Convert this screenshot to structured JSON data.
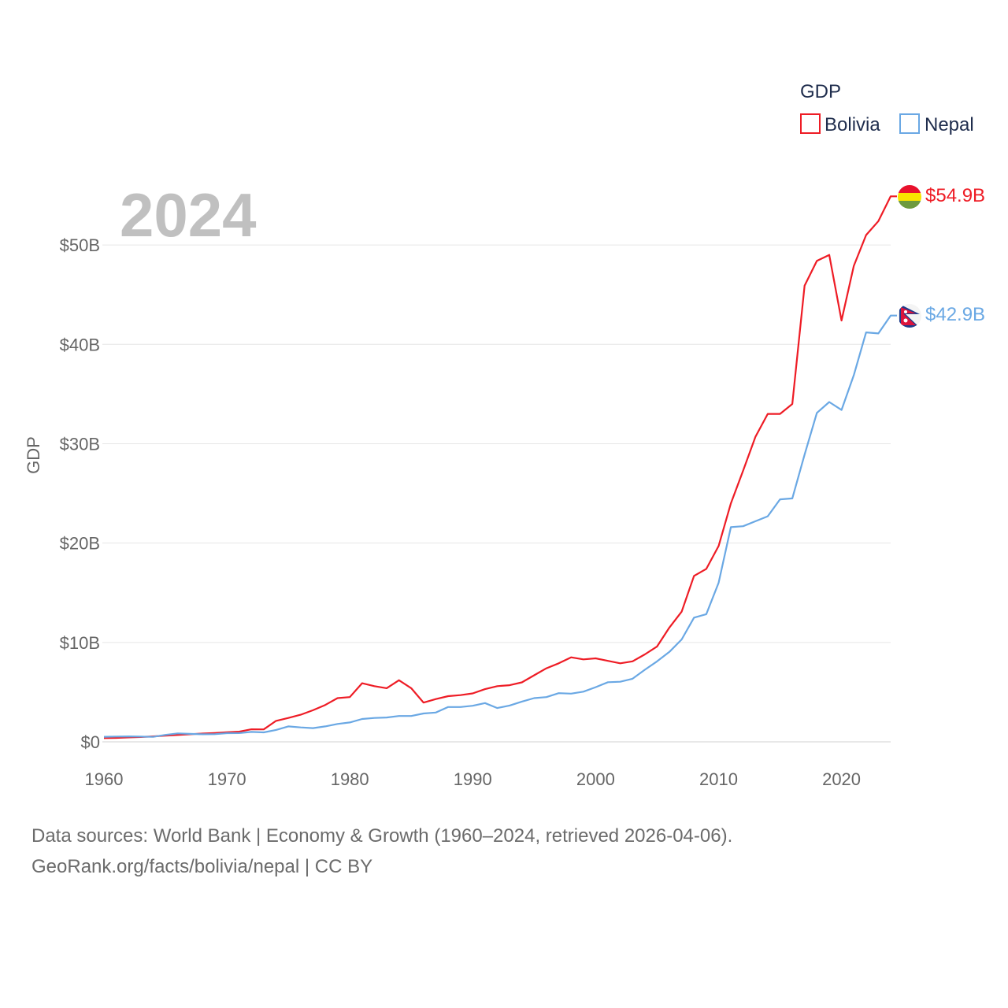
{
  "colors": {
    "bolivia": "#ee1c25",
    "nepal": "#6aa8e4",
    "grid": "#e6e6e6",
    "axis": "#666666"
  },
  "chart_data": {
    "type": "line",
    "title": "GDP",
    "year_label": "2024",
    "xlabel": "",
    "ylabel": "GDP",
    "xlim": [
      1960,
      2024
    ],
    "ylim": [
      0,
      55000000000
    ],
    "x_ticks": [
      1960,
      1970,
      1980,
      1990,
      2000,
      2010,
      2020
    ],
    "x_tick_labels": [
      "1960",
      "1970",
      "1980",
      "1990",
      "2000",
      "2010",
      "2020"
    ],
    "y_ticks": [
      0,
      10000000000,
      20000000000,
      30000000000,
      40000000000,
      50000000000
    ],
    "y_tick_labels": [
      "$0",
      "$10B",
      "$20B",
      "$30B",
      "$40B",
      "$50B"
    ],
    "legend": {
      "title": "GDP",
      "position": "top-right",
      "entries": [
        "Bolivia",
        "Nepal"
      ]
    },
    "x": [
      1960,
      1961,
      1962,
      1963,
      1964,
      1965,
      1966,
      1967,
      1968,
      1969,
      1970,
      1971,
      1972,
      1973,
      1974,
      1975,
      1976,
      1977,
      1978,
      1979,
      1980,
      1981,
      1982,
      1983,
      1984,
      1985,
      1986,
      1987,
      1988,
      1989,
      1990,
      1991,
      1992,
      1993,
      1994,
      1995,
      1996,
      1997,
      1998,
      1999,
      2000,
      2001,
      2002,
      2003,
      2004,
      2005,
      2006,
      2007,
      2008,
      2009,
      2010,
      2011,
      2012,
      2013,
      2014,
      2015,
      2016,
      2017,
      2018,
      2019,
      2020,
      2021,
      2022,
      2023,
      2024
    ],
    "series": [
      {
        "name": "Bolivia",
        "color": "#ee1c25",
        "end_label": "$54.9B",
        "values": [
          0.37,
          0.4,
          0.44,
          0.48,
          0.55,
          0.63,
          0.69,
          0.76,
          0.83,
          0.89,
          0.96,
          1.02,
          1.26,
          1.25,
          2.11,
          2.4,
          2.73,
          3.18,
          3.71,
          4.4,
          4.5,
          5.9,
          5.6,
          5.4,
          6.2,
          5.4,
          3.95,
          4.3,
          4.6,
          4.7,
          4.87,
          5.3,
          5.6,
          5.7,
          5.98,
          6.7,
          7.4,
          7.9,
          8.5,
          8.3,
          8.4,
          8.15,
          7.9,
          8.1,
          8.8,
          9.6,
          11.5,
          13.1,
          16.7,
          17.4,
          19.7,
          24.0,
          27.3,
          30.7,
          33.0,
          33.0,
          34.0,
          45.9,
          48.4,
          49.0,
          42.4,
          47.9,
          51.0,
          52.4,
          54.9
        ]
      },
      {
        "name": "Nepal",
        "color": "#6aa8e4",
        "end_label": "$42.9B",
        "values": [
          0.51,
          0.53,
          0.55,
          0.52,
          0.5,
          0.7,
          0.85,
          0.8,
          0.76,
          0.77,
          0.87,
          0.88,
          1.0,
          0.95,
          1.2,
          1.55,
          1.45,
          1.38,
          1.55,
          1.8,
          1.95,
          2.3,
          2.4,
          2.45,
          2.6,
          2.6,
          2.85,
          2.95,
          3.5,
          3.5,
          3.63,
          3.9,
          3.4,
          3.65,
          4.05,
          4.4,
          4.5,
          4.9,
          4.85,
          5.05,
          5.5,
          6.0,
          6.05,
          6.35,
          7.25,
          8.1,
          9.05,
          10.3,
          12.5,
          12.85,
          16.0,
          21.6,
          21.7,
          22.2,
          22.7,
          24.4,
          24.5,
          28.9,
          33.1,
          34.2,
          33.4,
          36.9,
          41.2,
          41.1,
          42.9
        ]
      }
    ]
  },
  "source": {
    "line1": "Data sources: World Bank | Economy & Growth (1960–2024, retrieved 2026-04-06).",
    "line2": "GeoRank.org/facts/bolivia/nepal | CC BY"
  }
}
